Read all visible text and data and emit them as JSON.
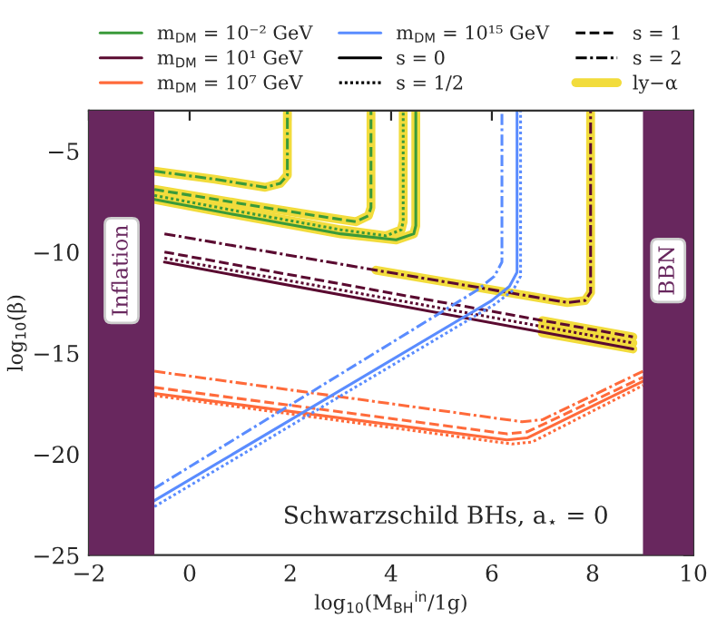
{
  "chart_data": {
    "type": "line",
    "xlabel": "log$_{10}$(M$_{BH}$$^{in}$/1g)",
    "ylabel": "log$_{10}$(β)",
    "xlim": [
      -2,
      10
    ],
    "xticks": [
      -2,
      0,
      2,
      4,
      6,
      8,
      10
    ],
    "ylim": [
      -25,
      -3
    ],
    "yticks": [
      -25,
      -20,
      -15,
      -10,
      -5
    ],
    "grid": false,
    "legend": "top",
    "annotations": [
      "Schwarzschild BHs, a$_{⋆}$ = 0"
    ],
    "bands": [
      {
        "axis": "x",
        "from": -2,
        "to": -0.7,
        "label": "Inflation",
        "color": "#68275e"
      },
      {
        "axis": "x",
        "from": 9,
        "to": 10,
        "label": "BBN",
        "color": "#68275e"
      }
    ],
    "series": [
      {
        "color": "#f2dc3c",
        "x": [
          -0.7,
          0.5,
          1.5,
          1.8,
          1.94,
          1.94
        ],
        "values": [
          -6.0,
          -6.4,
          -6.8,
          -6.6,
          -6.2,
          -3.0
        ]
      },
      {
        "color": "#f2dc3c",
        "x": [
          -0.7,
          1,
          2.5,
          3.3,
          3.55,
          3.6,
          3.6
        ],
        "values": [
          -6.9,
          -7.6,
          -8.2,
          -8.5,
          -8.2,
          -7.8,
          -3.0
        ]
      },
      {
        "color": "#f2dc3c",
        "x": [
          -0.7,
          1,
          3,
          3.9,
          4.2,
          4.24,
          4.24
        ],
        "values": [
          -7.2,
          -8.0,
          -8.9,
          -9.2,
          -8.9,
          -8.5,
          -3.0
        ]
      },
      {
        "color": "#f2dc3c",
        "x": [
          -0.7,
          1,
          3,
          4.1,
          4.45,
          4.49,
          4.49
        ],
        "values": [
          -7.4,
          -8.2,
          -9.1,
          -9.4,
          -9.1,
          -8.7,
          -3.0
        ]
      },
      {
        "color": "#f2dc3c",
        "x": [
          3.7,
          7.5,
          7.85,
          7.96,
          7.96
        ],
        "values": [
          -10.9,
          -12.5,
          -12.4,
          -12.0,
          -3.0
        ]
      },
      {
        "color": "#f2dc3c",
        "x": [
          7,
          8.8
        ],
        "values": [
          -13.4,
          -14.2
        ]
      },
      {
        "color": "#f2dc3c",
        "x": [
          7,
          8.8
        ],
        "values": [
          -13.7,
          -14.5
        ]
      },
      {
        "color": "#f2dc3c",
        "x": [
          7,
          8.8
        ],
        "values": [
          -14.0,
          -14.8
        ]
      },
      {
        "name": "m$_{DM}$ = 10⁻² GeV",
        "color": "#3a9a3a",
        "line_style": "solid",
        "x": [
          -0.7,
          1,
          3,
          4.1,
          4.45,
          4.49,
          4.49
        ],
        "values": [
          -7.4,
          -8.2,
          -9.1,
          -9.4,
          -9.1,
          -8.7,
          -3.0
        ]
      },
      {
        "color": "#3a9a3a",
        "line_style": "dotted",
        "x": [
          -0.7,
          1,
          3,
          3.9,
          4.2,
          4.24,
          4.24
        ],
        "values": [
          -7.2,
          -8.0,
          -8.9,
          -9.2,
          -8.9,
          -8.5,
          -3.0
        ]
      },
      {
        "color": "#3a9a3a",
        "line_style": "dashed",
        "x": [
          -0.7,
          1,
          2.5,
          3.3,
          3.55,
          3.6,
          3.6
        ],
        "values": [
          -6.9,
          -7.6,
          -8.2,
          -8.5,
          -8.2,
          -7.8,
          -3.0
        ]
      },
      {
        "color": "#3a9a3a",
        "line_style": "dashdot",
        "x": [
          -0.7,
          0.5,
          1.5,
          1.8,
          1.94,
          1.94
        ],
        "values": [
          -6.0,
          -6.4,
          -6.8,
          -6.6,
          -6.2,
          -3.0
        ]
      },
      {
        "name": "m$_{DM}$ = 10¹ GeV",
        "color": "#5a0a30",
        "line_style": "solid",
        "x": [
          -0.5,
          8.8
        ],
        "values": [
          -10.5,
          -14.8
        ]
      },
      {
        "color": "#5a0a30",
        "line_style": "dotted",
        "x": [
          -0.5,
          8.8
        ],
        "values": [
          -10.3,
          -14.5
        ]
      },
      {
        "color": "#5a0a30",
        "line_style": "dashed",
        "x": [
          -0.5,
          8.8
        ],
        "values": [
          -10.0,
          -14.2
        ]
      },
      {
        "color": "#5a0a30",
        "line_style": "dashdot",
        "x": [
          -0.5,
          3.7,
          7.5,
          7.85,
          7.96,
          7.96
        ],
        "values": [
          -9.1,
          -10.9,
          -12.5,
          -12.4,
          -12.0,
          -3.0
        ]
      },
      {
        "name": "m$_{DM}$ = 10⁷ GeV",
        "color": "#ff6a3a",
        "line_style": "solid",
        "x": [
          -0.7,
          6.3,
          6.7,
          9
        ],
        "values": [
          -17.0,
          -19.3,
          -19.2,
          -16.4
        ]
      },
      {
        "color": "#ff6a3a",
        "line_style": "dotted",
        "x": [
          -0.7,
          6.4,
          6.8,
          9
        ],
        "values": [
          -17.1,
          -19.5,
          -19.4,
          -16.6
        ]
      },
      {
        "color": "#ff6a3a",
        "line_style": "dashed",
        "x": [
          -0.7,
          6.3,
          6.7,
          9
        ],
        "values": [
          -16.7,
          -19.0,
          -18.9,
          -16.2
        ]
      },
      {
        "color": "#ff6a3a",
        "line_style": "dashdot",
        "x": [
          -0.7,
          6.6,
          7.0,
          9
        ],
        "values": [
          -15.9,
          -18.4,
          -18.3,
          -15.9
        ]
      },
      {
        "name": "m$_{DM}$ = 10¹⁵ GeV",
        "color": "#5a8cff",
        "line_style": "solid",
        "x": [
          -0.7,
          6.0,
          6.35,
          6.5,
          6.5
        ],
        "values": [
          -22.3,
          -12.4,
          -11.7,
          -11.0,
          -3.0
        ]
      },
      {
        "color": "#5a8cff",
        "line_style": "dotted",
        "x": [
          -0.7,
          6.05,
          6.42,
          6.57,
          6.57
        ],
        "values": [
          -22.6,
          -12.6,
          -11.9,
          -11.2,
          -3.0
        ]
      },
      {
        "color": "#5a8cff",
        "line_style": "dashdot",
        "x": [
          -0.7,
          5.7,
          6.05,
          6.2,
          6.2
        ],
        "values": [
          -21.7,
          -11.9,
          -11.2,
          -10.5,
          -3.0
        ]
      },
      {
        "name": "s = 0",
        "color": "#000000",
        "line_style": "solid"
      },
      {
        "name": "s = 1/2",
        "color": "#000000",
        "line_style": "dotted"
      },
      {
        "name": "s = 1",
        "color": "#000000",
        "line_style": "dashed"
      },
      {
        "name": "s = 2",
        "color": "#000000",
        "line_style": "dashdot"
      },
      {
        "name": "ly−α",
        "color": "#f2dc3c"
      }
    ]
  }
}
